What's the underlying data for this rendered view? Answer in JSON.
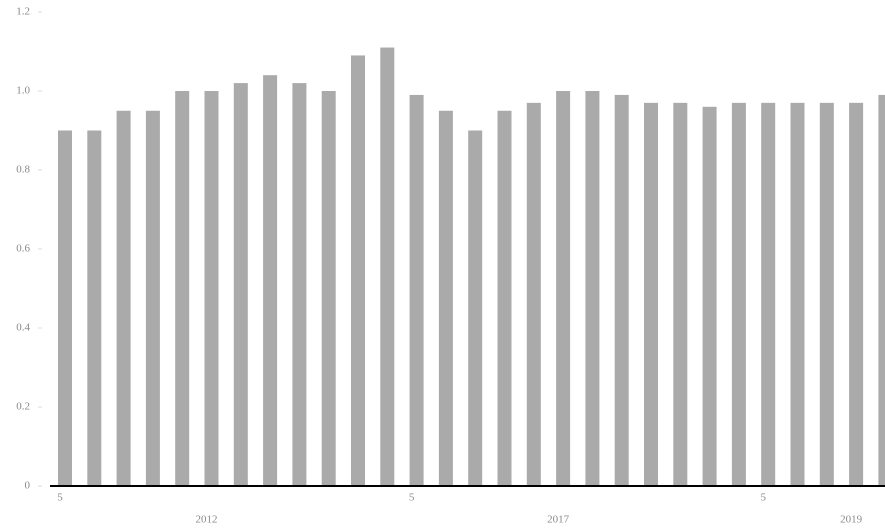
{
  "chart_data": {
    "type": "bar",
    "categories": [
      "5",
      null,
      null,
      null,
      null,
      "2012",
      null,
      null,
      null,
      null,
      null,
      null,
      "5",
      null,
      null,
      null,
      null,
      "2017",
      null,
      null,
      null,
      null,
      null,
      null,
      "5",
      null,
      null,
      "2019",
      null
    ],
    "values": [
      0.9,
      0.9,
      0.95,
      0.95,
      1.0,
      1.0,
      1.02,
      1.04,
      1.02,
      1.0,
      1.09,
      1.11,
      0.99,
      0.95,
      0.9,
      0.95,
      0.97,
      1.0,
      1.0,
      0.99,
      0.97,
      0.97,
      0.96,
      0.97,
      0.97,
      0.97,
      0.97,
      0.97,
      0.99
    ],
    "color": "#aaaaaa",
    "ylim": [
      0,
      1.2
    ],
    "yticks": [
      0,
      0.2,
      0.4,
      0.6,
      0.8,
      {
        "value": 1.0,
        "label": "1.0"
      },
      1.2
    ]
  }
}
